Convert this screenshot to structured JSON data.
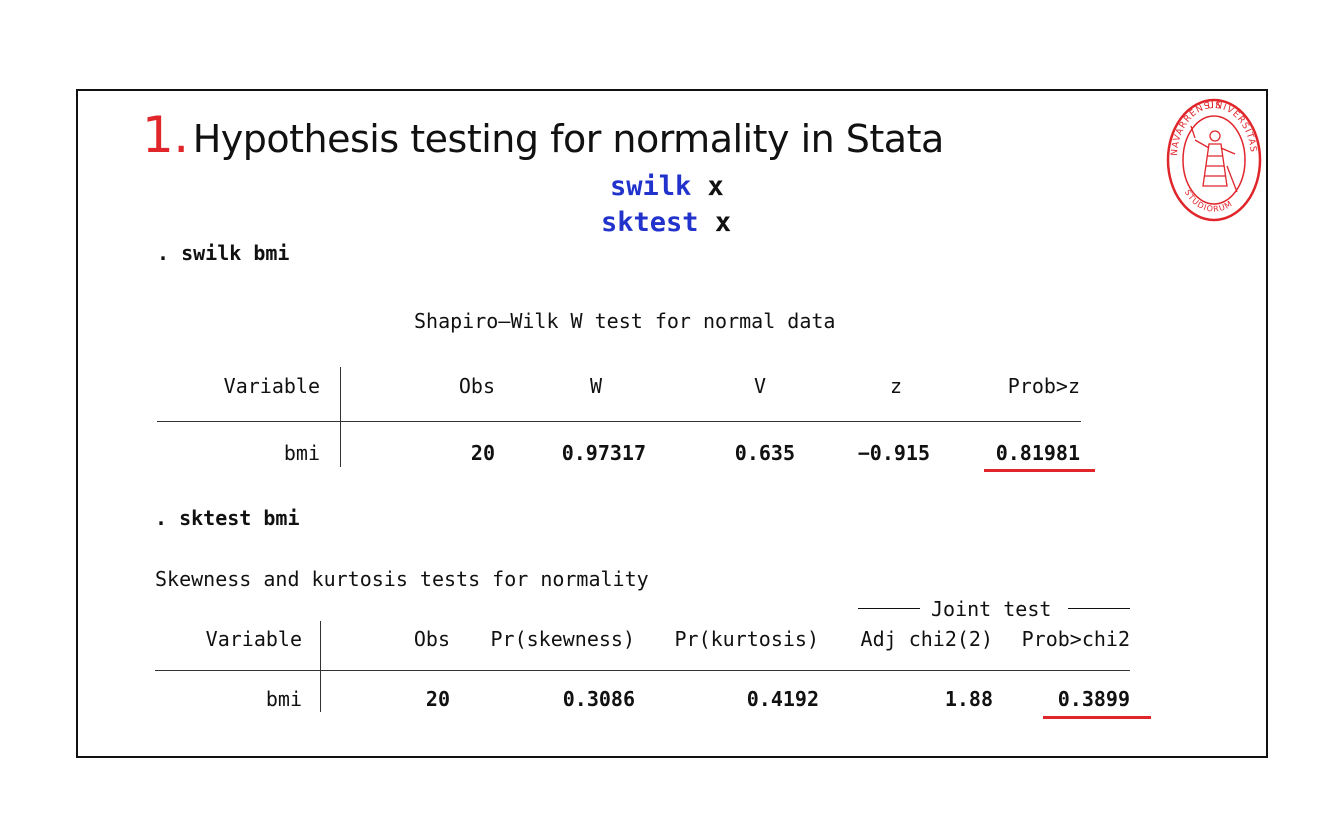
{
  "slide": {
    "number": "1.",
    "title": "Hypothesis testing for normality in Stata",
    "commands": [
      {
        "keyword": "swilk",
        "arg": "x"
      },
      {
        "keyword": "sktest",
        "arg": "x"
      }
    ]
  },
  "swilk": {
    "command": ". swilk bmi",
    "heading": "Shapiro–Wilk W test for normal data",
    "headers": [
      "Variable",
      "Obs",
      "W",
      "V",
      "z",
      "Prob>z"
    ],
    "row": {
      "variable": "bmi",
      "obs": "20",
      "w": "0.97317",
      "v": "0.635",
      "z": "−0.915",
      "prob": "0.81981"
    }
  },
  "sktest": {
    "command": ". sktest bmi",
    "heading": "Skewness and kurtosis tests for normality",
    "joint_label": "Joint test",
    "headers": [
      "Variable",
      "Obs",
      "Pr(skewness)",
      "Pr(kurtosis)",
      "Adj chi2(2)",
      "Prob>chi2"
    ],
    "row": {
      "variable": "bmi",
      "obs": "20",
      "skew": "0.3086",
      "kurt": "0.4192",
      "chi2": "1.88",
      "prob": "0.3899"
    }
  },
  "seal": {
    "top_text": "UNIVERSITAS",
    "left_text": "NAVARRENSIS",
    "bottom_text": "STUDIORUM",
    "color": "#e0262b"
  }
}
